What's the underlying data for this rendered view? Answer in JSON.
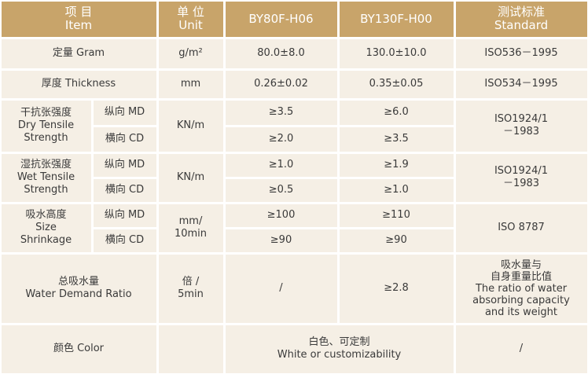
{
  "table": {
    "header": {
      "item": [
        "项 目",
        "Item"
      ],
      "unit": [
        "单 位",
        "Unit"
      ],
      "products": [
        "BY80F-H06",
        "BY130F-H00"
      ],
      "standard": [
        "测试标准",
        "Standard"
      ]
    },
    "rows": [
      {
        "item": [
          "定量 Gram"
        ],
        "unit": [
          "g/m²"
        ],
        "values": [
          "80.0±8.0",
          "130.0±10.0"
        ],
        "standard": [
          "ISO536－1995"
        ]
      },
      {
        "item": [
          "厚度 Thickness"
        ],
        "unit": [
          "mm"
        ],
        "values": [
          "0.26±0.02",
          "0.35±0.05"
        ],
        "standard": [
          "ISO534－1995"
        ]
      },
      {
        "item": [
          "干抗张强度",
          "Dry Tensile",
          "Strength"
        ],
        "unit": [
          "KN/m"
        ],
        "sub": [
          {
            "direction": "纵向 MD",
            "values": [
              "≥3.5",
              "≥6.0"
            ]
          },
          {
            "direction": "横向 CD",
            "values": [
              "≥2.0",
              "≥3.5"
            ]
          }
        ],
        "standard": [
          "ISO1924/1",
          "－1983"
        ]
      },
      {
        "item": [
          "湿抗张强度",
          "Wet Tensile",
          "Strength"
        ],
        "unit": [
          "KN/m"
        ],
        "sub": [
          {
            "direction": "纵向 MD",
            "values": [
              "≥1.0",
              "≥1.9"
            ]
          },
          {
            "direction": "横向 CD",
            "values": [
              "≥0.5",
              "≥1.0"
            ]
          }
        ],
        "standard": [
          "ISO1924/1",
          "－1983"
        ]
      },
      {
        "item": [
          "吸水高度",
          "Size",
          "Shrinkage"
        ],
        "unit": [
          "mm/",
          "10min"
        ],
        "sub": [
          {
            "direction": "纵向 MD",
            "values": [
              "≥100",
              "≥110"
            ]
          },
          {
            "direction": "横向 CD",
            "values": [
              "≥90",
              "≥90"
            ]
          }
        ],
        "standard": [
          "ISO 8787"
        ]
      },
      {
        "item": [
          "总吸水量",
          "Water Demand Ratio"
        ],
        "unit": [
          "倍 /",
          "5min"
        ],
        "values": [
          "/",
          "≥2.8"
        ],
        "standard": [
          "吸水量与",
          "自身重量比值",
          "The ratio of water",
          "absorbing capacity",
          "and its weight"
        ]
      },
      {
        "item": [
          "颜色 Color"
        ],
        "merged_value": [
          "白色、可定制",
          "White or customizability"
        ],
        "standard": [
          "/"
        ]
      }
    ]
  }
}
